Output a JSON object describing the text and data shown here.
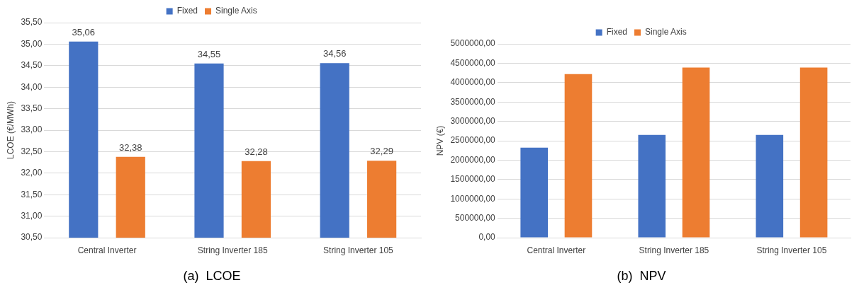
{
  "chart_data": [
    {
      "type": "bar",
      "title": "(a)  LCOE",
      "ylabel": "LCOE (€/MWh)",
      "categories": [
        "Central Inverter",
        "String Inverter 185",
        "String Inverter 105"
      ],
      "series": [
        {
          "name": "Fixed",
          "color": "#4472c4",
          "values": [
            35.06,
            34.55,
            34.56
          ],
          "value_labels": [
            "35,06",
            "34,55",
            "34,56"
          ]
        },
        {
          "name": "Single Axis",
          "color": "#ed7d31",
          "values": [
            32.38,
            32.28,
            32.29
          ],
          "value_labels": [
            "32,38",
            "32,28",
            "32,29"
          ]
        }
      ],
      "ylim": [
        30.5,
        35.5
      ],
      "yticks": [
        {
          "value": 30.5,
          "label": "30,50"
        },
        {
          "value": 31,
          "label": "31,00"
        },
        {
          "value": 31.5,
          "label": "31,50"
        },
        {
          "value": 32,
          "label": "32,00"
        },
        {
          "value": 32.5,
          "label": "32,50"
        },
        {
          "value": 33,
          "label": "33,00"
        },
        {
          "value": 33.5,
          "label": "33,50"
        },
        {
          "value": 34,
          "label": "34,00"
        },
        {
          "value": 34.5,
          "label": "34,50"
        },
        {
          "value": 35,
          "label": "35,00"
        },
        {
          "value": 35.5,
          "label": "35,50"
        }
      ],
      "grid": "y",
      "legend": "top"
    },
    {
      "type": "bar",
      "title": "(b)  NPV",
      "ylabel": "NPV (€)",
      "categories": [
        "Central Inverter",
        "String Inverter 185",
        "String Inverter 105"
      ],
      "series": [
        {
          "name": "Fixed",
          "color": "#4472c4",
          "values": [
            2320000,
            2650000,
            2650000
          ]
        },
        {
          "name": "Single Axis",
          "color": "#ed7d31",
          "values": [
            4220000,
            4390000,
            4390000
          ]
        }
      ],
      "ylim": [
        0,
        5000000
      ],
      "yticks": [
        {
          "value": 0,
          "label": "0,00"
        },
        {
          "value": 500000,
          "label": "500000,00"
        },
        {
          "value": 1000000,
          "label": "1000000,00"
        },
        {
          "value": 1500000,
          "label": "1500000,00"
        },
        {
          "value": 2000000,
          "label": "2000000,00"
        },
        {
          "value": 2500000,
          "label": "2500000,00"
        },
        {
          "value": 3000000,
          "label": "3000000,00"
        },
        {
          "value": 3500000,
          "label": "3500000,00"
        },
        {
          "value": 4000000,
          "label": "4000000,00"
        },
        {
          "value": 4500000,
          "label": "4500000,00"
        },
        {
          "value": 5000000,
          "label": "5000000,00"
        }
      ],
      "grid": "y",
      "legend": "top"
    }
  ]
}
